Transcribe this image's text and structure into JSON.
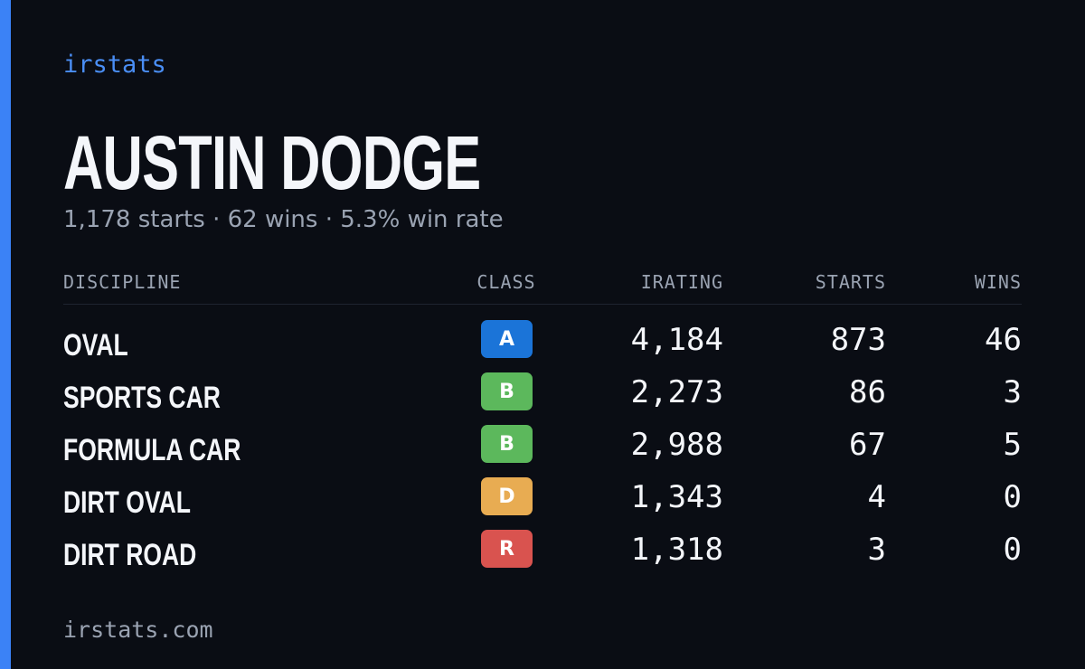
{
  "brand": "irstats",
  "driver": {
    "name": "AUSTIN DODGE",
    "summary": "1,178 starts · 62 wins · 5.3% win rate"
  },
  "table": {
    "columns": [
      "DISCIPLINE",
      "CLASS",
      "IRATING",
      "STARTS",
      "WINS"
    ],
    "rows": [
      {
        "discipline": "OVAL",
        "class": "A",
        "class_color": "#1b74d8",
        "irating": "4,184",
        "starts": "873",
        "wins": "46"
      },
      {
        "discipline": "SPORTS CAR",
        "class": "B",
        "class_color": "#5cb85c",
        "irating": "2,273",
        "starts": "86",
        "wins": "3"
      },
      {
        "discipline": "FORMULA CAR",
        "class": "B",
        "class_color": "#5cb85c",
        "irating": "2,988",
        "starts": "67",
        "wins": "5"
      },
      {
        "discipline": "DIRT OVAL",
        "class": "D",
        "class_color": "#e8ac52",
        "irating": "1,343",
        "starts": "4",
        "wins": "0"
      },
      {
        "discipline": "DIRT ROAD",
        "class": "R",
        "class_color": "#d9534f",
        "irating": "1,318",
        "starts": "3",
        "wins": "0"
      }
    ]
  },
  "footer": "irstats.com"
}
